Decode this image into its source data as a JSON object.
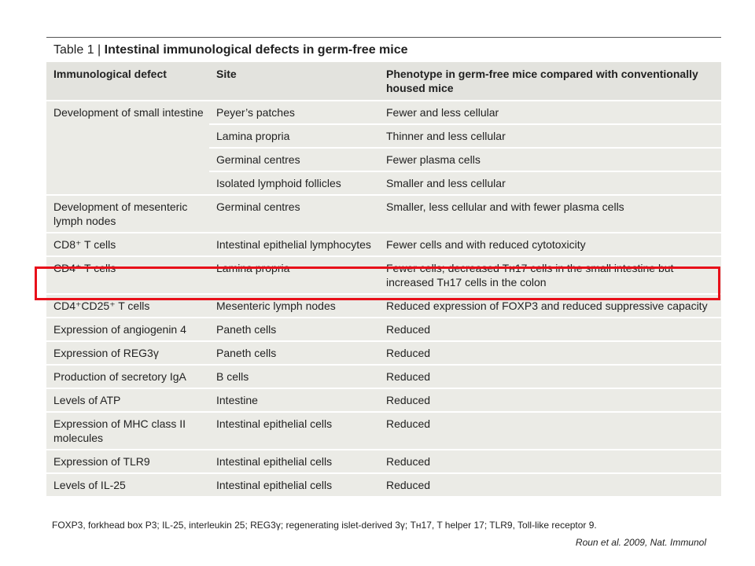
{
  "table": {
    "title_prefix": "Table 1 | ",
    "title_main": "Intestinal immunological defects in germ-free mice",
    "headers": [
      "Immunological defect",
      "Site",
      "Phenotype in germ-free mice compared with conventionally housed mice"
    ],
    "rows": [
      {
        "defect": "Development of small intestine",
        "sites": [
          {
            "site": "Peyer’s patches",
            "phenotype": "Fewer and less cellular"
          },
          {
            "site": "Lamina propria",
            "phenotype": "Thinner and less cellular"
          },
          {
            "site": "Germinal centres",
            "phenotype": "Fewer plasma cells"
          },
          {
            "site": "Isolated lymphoid follicles",
            "phenotype": "Smaller and less cellular"
          }
        ]
      },
      {
        "defect": "Development of mesenteric lymph nodes",
        "sites": [
          {
            "site": "Germinal centres",
            "phenotype": "Smaller, less cellular and with fewer plasma cells"
          }
        ]
      },
      {
        "defect": "CD8⁺ T cells",
        "sites": [
          {
            "site": "Intestinal epithelial lymphocytes",
            "phenotype": "Fewer cells and with reduced cytotoxicity"
          }
        ]
      },
      {
        "defect": "CD4⁺ T cells",
        "sites": [
          {
            "site": "Lamina propria",
            "phenotype": "Fewer cells; decreased Tʜ17 cells in the small intestine but increased Tʜ17 cells in the colon"
          }
        ]
      },
      {
        "defect": "CD4⁺CD25⁺ T cells",
        "sites": [
          {
            "site": "Mesenteric lymph nodes",
            "phenotype": "Reduced expression of FOXP3 and reduced suppressive capacity"
          }
        ]
      },
      {
        "defect": "Expression of angiogenin 4",
        "sites": [
          {
            "site": "Paneth cells",
            "phenotype": "Reduced"
          }
        ]
      },
      {
        "defect": "Expression of REG3γ",
        "sites": [
          {
            "site": "Paneth cells",
            "phenotype": "Reduced"
          }
        ]
      },
      {
        "defect": "Production of secretory IgA",
        "sites": [
          {
            "site": "B cells",
            "phenotype": "Reduced"
          }
        ]
      },
      {
        "defect": "Levels of ATP",
        "sites": [
          {
            "site": "Intestine",
            "phenotype": "Reduced"
          }
        ]
      },
      {
        "defect": "Expression of MHC class II molecules",
        "sites": [
          {
            "site": "Intestinal epithelial cells",
            "phenotype": "Reduced"
          }
        ]
      },
      {
        "defect": "Expression of TLR9",
        "sites": [
          {
            "site": "Intestinal epithelial cells",
            "phenotype": "Reduced"
          }
        ]
      },
      {
        "defect": "Levels of IL-25",
        "sites": [
          {
            "site": "Intestinal epithelial cells",
            "phenotype": "Reduced"
          }
        ]
      }
    ],
    "footnote": "FOXP3, forkhead box P3; IL-25, interleukin 25; REG3γ; regenerating islet-derived 3γ; Tʜ17, T helper 17; TLR9, Toll-like receptor 9."
  },
  "citation": "Roun et al. 2009, Nat. Immunol",
  "highlight_color": "#e8101a"
}
